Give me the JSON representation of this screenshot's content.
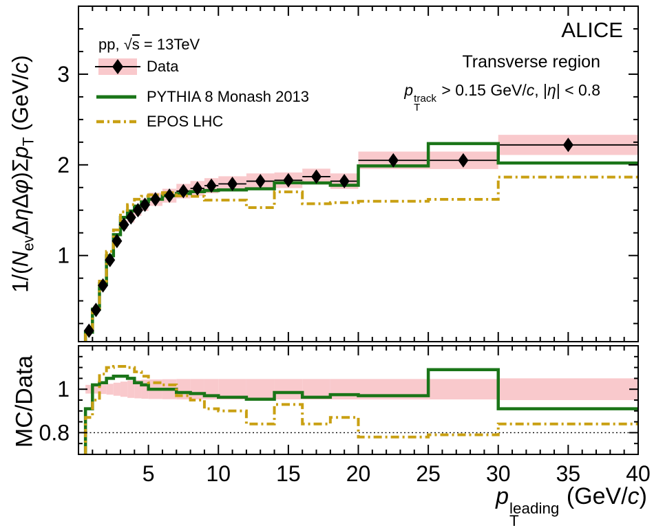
{
  "annotations": {
    "experiment": "ALICE",
    "region": "Transverse region",
    "collision_segments": [
      {
        "t": "pp, "
      },
      {
        "t": "s",
        "sqrt": true
      },
      {
        "t": " = 13TeV"
      }
    ],
    "cuts_segments": [
      {
        "t": "p",
        "i": true
      },
      {
        "stack": {
          "sup": "track",
          "sub": "T"
        }
      },
      {
        "t": " > 0.15 GeV/"
      },
      {
        "t": "c",
        "i": true
      },
      {
        "t": ", |"
      },
      {
        "t": "η",
        "i": true
      },
      {
        "t": "| < 0.8"
      }
    ]
  },
  "legend": {
    "items": [
      {
        "label": "Data",
        "swatch": "data"
      },
      {
        "label": "PYTHIA 8 Monash 2013",
        "swatch": "pythia"
      },
      {
        "label": "EPOS LHC",
        "swatch": "epos"
      }
    ]
  },
  "axes": {
    "x_title_segments": [
      {
        "t": "p",
        "i": true
      },
      {
        "stack": {
          "sup": "leading",
          "sub": "T"
        }
      },
      {
        "t": " (GeV/"
      },
      {
        "t": "c",
        "i": true
      },
      {
        "t": ")"
      }
    ],
    "y_main_title_segments": [
      {
        "t": "1/("
      },
      {
        "t": "N",
        "i": true
      },
      {
        "t": "ev",
        "sub": true
      },
      {
        "t": "Δ"
      },
      {
        "t": "η",
        "i": true
      },
      {
        "t": "Δ"
      },
      {
        "t": "φ",
        "i": true
      },
      {
        "t": ")Σ"
      },
      {
        "t": "p",
        "i": true
      },
      {
        "t": "T",
        "sub": true
      },
      {
        "t": " (GeV/"
      },
      {
        "t": "c",
        "i": true
      },
      {
        "t": ")"
      }
    ],
    "y_ratio_title": "MC/Data"
  },
  "colors": {
    "band_pink": "#f9c9cc",
    "pythia_green": "#1a7518",
    "epos_gold": "#c9a013",
    "data_black": "#000000",
    "frame": "#000000"
  },
  "chart_data": {
    "type": "step-histogram-with-ratio",
    "x_range": [
      0,
      40
    ],
    "x_major_ticks": [
      5,
      10,
      15,
      20,
      25,
      30,
      35,
      40
    ],
    "x_minor_step": 1,
    "main_panel": {
      "y_range": [
        0.05,
        3.75
      ],
      "y_major_ticks": [
        1,
        2,
        3
      ],
      "y_minor_step": 0.25
    },
    "ratio_panel": {
      "y_range": [
        0.7,
        1.2
      ],
      "y_major_ticks": [
        0.8,
        1
      ],
      "y_minor_step": 0.05,
      "ref_line": 0.8
    },
    "bin_edges": [
      0.5,
      1,
      1.5,
      2,
      2.5,
      3,
      3.5,
      4,
      4.5,
      5,
      6,
      7,
      8,
      9,
      10,
      12,
      14,
      16,
      18,
      20,
      25,
      30,
      40
    ],
    "data": {
      "values": [
        0.17,
        0.4,
        0.67,
        0.95,
        1.16,
        1.34,
        1.42,
        1.5,
        1.56,
        1.62,
        1.66,
        1.71,
        1.74,
        1.77,
        1.79,
        1.82,
        1.83,
        1.87,
        1.82,
        2.05,
        2.05,
        2.22
      ],
      "syst_frac": [
        0.02,
        0.02,
        0.022,
        0.025,
        0.03,
        0.035,
        0.04,
        0.042,
        0.044,
        0.045,
        0.046,
        0.047,
        0.047,
        0.047,
        0.047,
        0.047,
        0.047,
        0.047,
        0.047,
        0.047,
        0.047,
        0.05
      ]
    },
    "pythia_ratio": [
      0.91,
      1.02,
      1.03,
      1.05,
      1.06,
      1.06,
      1.05,
      1.03,
      1.02,
      1.0,
      1.0,
      0.985,
      0.98,
      0.97,
      0.963,
      0.954,
      0.985,
      0.963,
      0.975,
      0.97,
      1.09,
      0.91
    ],
    "epos_ratio": [
      0.87,
      0.95,
      1.07,
      1.1,
      1.105,
      1.105,
      1.1,
      1.08,
      1.06,
      1.03,
      1.02,
      0.97,
      0.95,
      0.91,
      0.9,
      0.84,
      0.93,
      0.84,
      0.87,
      0.78,
      0.79,
      0.84
    ]
  }
}
